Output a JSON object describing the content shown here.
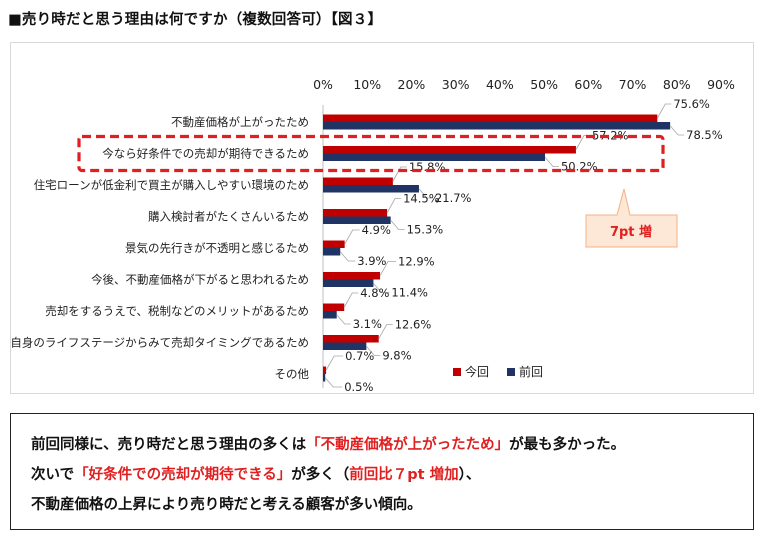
{
  "header": {
    "title": "■売り時だと思う理由は何ですか（複数回答可）【図３】"
  },
  "chart_data": {
    "type": "bar",
    "orientation": "horizontal",
    "title": "売り時だと思う理由は何ですか（複数回答可）",
    "categories": [
      "不動産価格が上がったため",
      "今なら好条件での売却が期待できるため",
      "住宅ローンが低金利で買主が購入しやすい環境のため",
      "購入検討者がたくさんいるため",
      "景気の先行きが不透明と感じるため",
      "今後、不動産価格が下がると思われるため",
      "売却をするうえで、税制などのメリットがあるため",
      "自身のライフステージからみて売却タイミングであるため",
      "その他"
    ],
    "series": [
      {
        "name": "今回",
        "color": "#c00000",
        "values": [
          75.6,
          57.2,
          15.8,
          14.5,
          4.9,
          12.9,
          4.8,
          12.6,
          0.7
        ],
        "labels": [
          "75.6%",
          "57.2%",
          "15.8%",
          "14.5%",
          "4.9%",
          "12.9%",
          "4.8%",
          "12.6%",
          "0.7%"
        ]
      },
      {
        "name": "前回",
        "color": "#1f3464",
        "values": [
          78.5,
          50.2,
          21.7,
          15.3,
          3.9,
          11.4,
          3.1,
          9.8,
          0.5
        ],
        "labels": [
          "78.5%",
          "50.2%",
          "21.7%",
          "15.3%",
          "3.9%",
          "11.4%",
          "3.1%",
          "9.8%",
          "0.5%"
        ]
      }
    ],
    "xlim": [
      0,
      90
    ],
    "ticks": [
      "0%",
      "10%",
      "20%",
      "30%",
      "40%",
      "50%",
      "60%",
      "70%",
      "80%",
      "90%"
    ],
    "tick_values": [
      0,
      10,
      20,
      30,
      40,
      50,
      60,
      70,
      80,
      90
    ],
    "xlabel": "",
    "ylabel": "",
    "legend_position": "bottom-right",
    "highlight_category_index": 1,
    "callout": {
      "text": "7pt 増",
      "color": "#e02020",
      "fill": "#fde7d6"
    }
  },
  "summary": {
    "l1a": "前回同様に、売り時だと思う理由の多くは",
    "l1b": "「不動産価格が上がったため」",
    "l1c": "が最も多かった。",
    "l2a": "次いで",
    "l2b": "「好条件での売却が期待できる」",
    "l2c": "が多く（",
    "l2d": "前回比７pt 増加",
    "l2e": "）、",
    "l3": "不動産価格の上昇により売り時だと考える顧客が多い傾向。"
  }
}
